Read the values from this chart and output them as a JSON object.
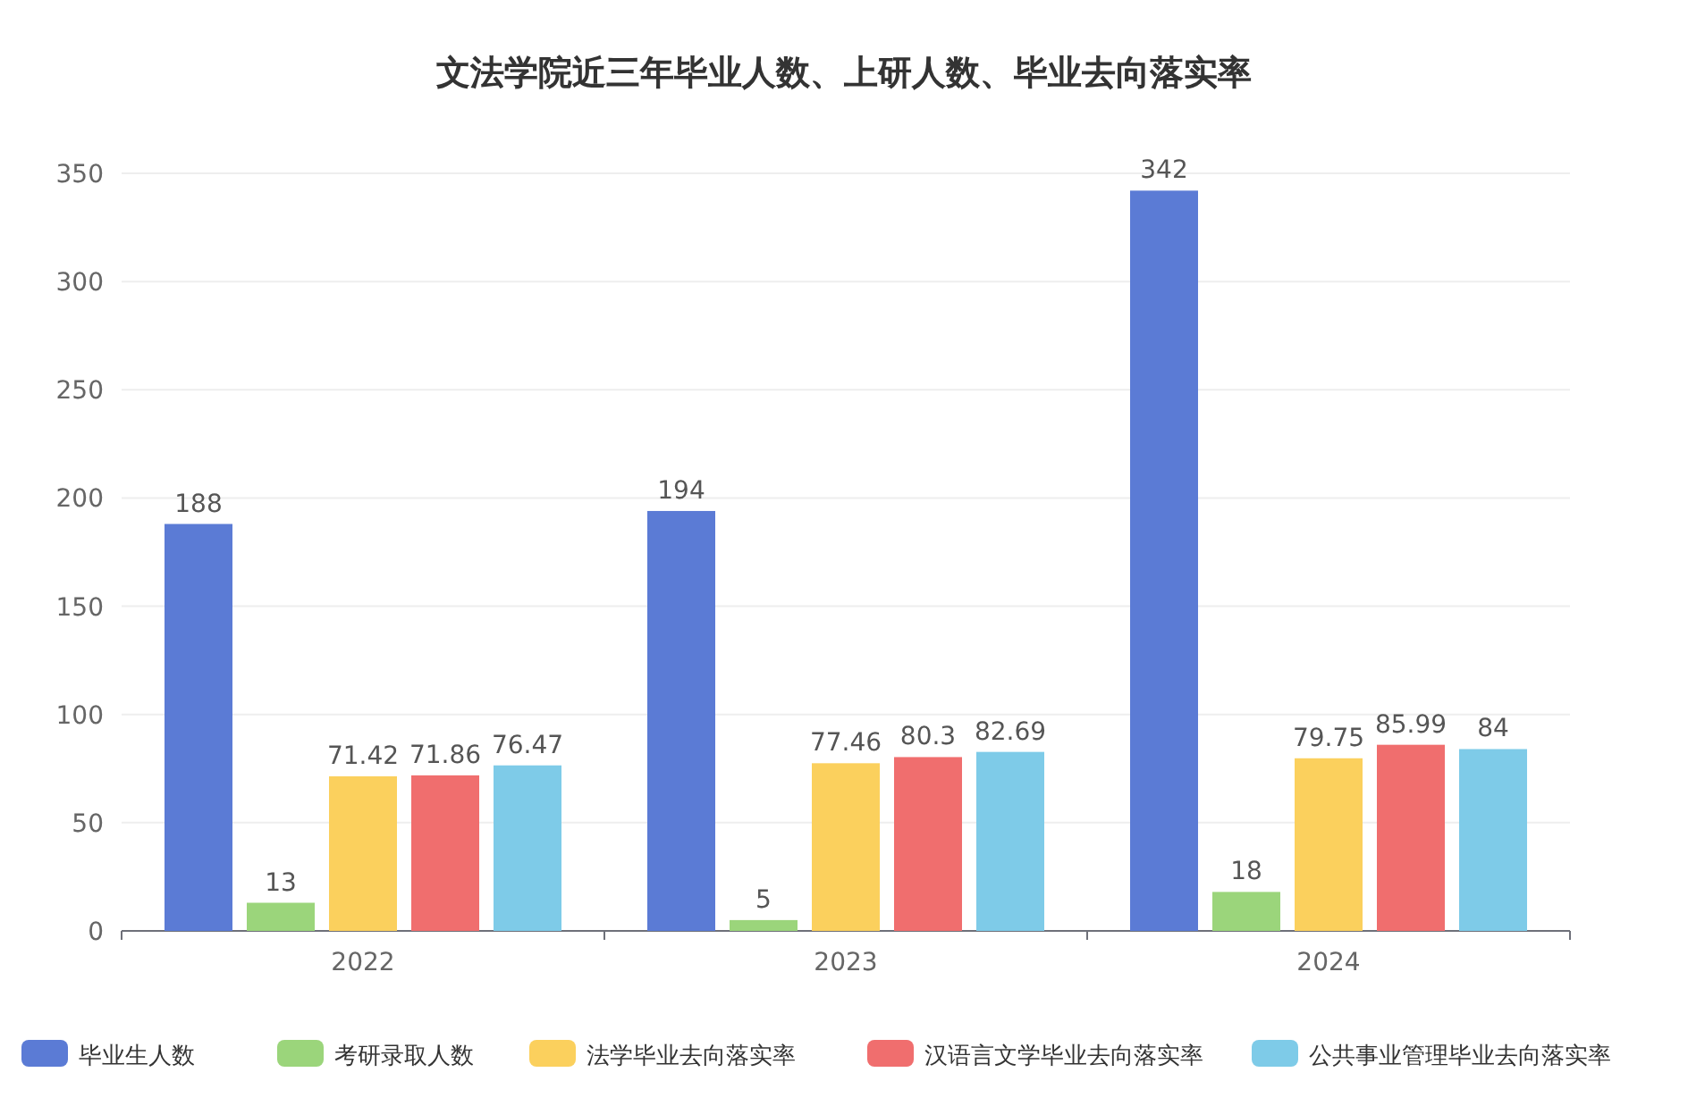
{
  "chart_data": {
    "type": "bar",
    "title": "文法学院近三年毕业人数、上研人数、毕业去向落实率",
    "categories": [
      "2022",
      "2023",
      "2024"
    ],
    "series": [
      {
        "name": "毕业生人数",
        "color": "#5b7bd5",
        "values": [
          188,
          194,
          342
        ]
      },
      {
        "name": "考研录取人数",
        "color": "#9bd57b",
        "values": [
          13,
          5,
          18
        ]
      },
      {
        "name": "法学毕业去向落实率",
        "color": "#fbd05d",
        "values": [
          71.42,
          77.46,
          79.75
        ]
      },
      {
        "name": "汉语言文学毕业去向落实率",
        "color": "#f06e6e",
        "values": [
          71.86,
          80.3,
          85.99
        ]
      },
      {
        "name": "公共事业管理毕业去向落实率",
        "color": "#7ecbe8",
        "values": [
          76.47,
          82.69,
          84
        ]
      }
    ],
    "ylim": [
      0,
      350
    ],
    "yticks": [
      0,
      50,
      100,
      150,
      200,
      250,
      300,
      350
    ],
    "grid": "y",
    "data_labels": true,
    "legend": "bottom"
  }
}
